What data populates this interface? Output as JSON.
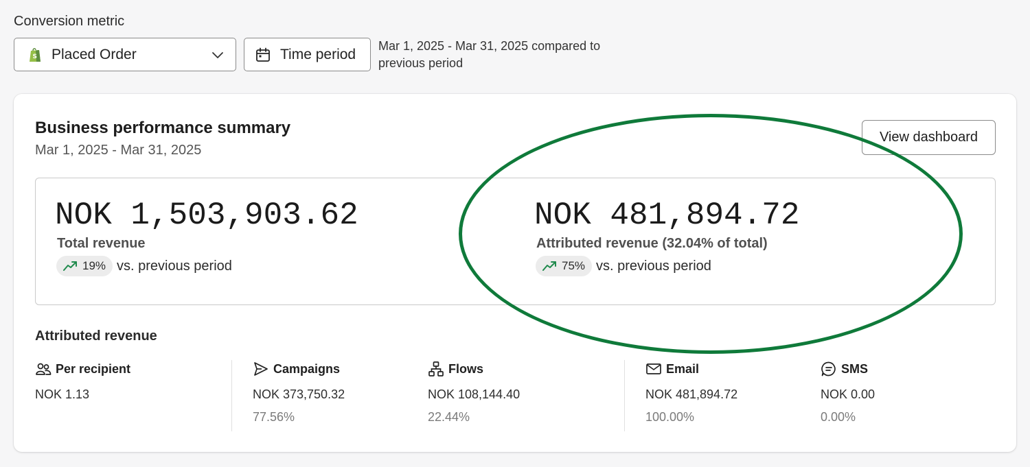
{
  "conversion": {
    "label": "Conversion metric",
    "selected_metric": "Placed Order",
    "time_button": "Time period",
    "range_text": "Mar 1, 2025 - Mar 31, 2025 compared to previous period"
  },
  "summary": {
    "title": "Business performance summary",
    "date_range": "Mar 1, 2025 - Mar 31, 2025",
    "view_button": "View dashboard",
    "total": {
      "value": "NOK 1,503,903.62",
      "label": "Total revenue",
      "change": "19%",
      "comparison": "vs. previous period"
    },
    "attributed": {
      "value": "NOK 481,894.72",
      "label": "Attributed revenue (32.04% of total)",
      "change": "75%",
      "comparison": "vs. previous period"
    }
  },
  "attributed_section": {
    "title": "Attributed revenue",
    "columns": [
      {
        "label": "Per recipient",
        "value": "NOK 1.13",
        "percent": "",
        "icon": "people-icon"
      },
      {
        "label": "Campaigns",
        "value": "NOK 373,750.32",
        "percent": "77.56%",
        "icon": "send-icon"
      },
      {
        "label": "Flows",
        "value": "NOK 108,144.40",
        "percent": "22.44%",
        "icon": "flow-icon"
      },
      {
        "label": "Email",
        "value": "NOK 481,894.72",
        "percent": "100.00%",
        "icon": "mail-icon"
      },
      {
        "label": "SMS",
        "value": "NOK 0.00",
        "percent": "0.00%",
        "icon": "sms-icon"
      }
    ]
  },
  "colors": {
    "highlight": "#0f7a3a",
    "trend_up": "#1f8a4c",
    "shopify_green": "#5e8e3e"
  }
}
